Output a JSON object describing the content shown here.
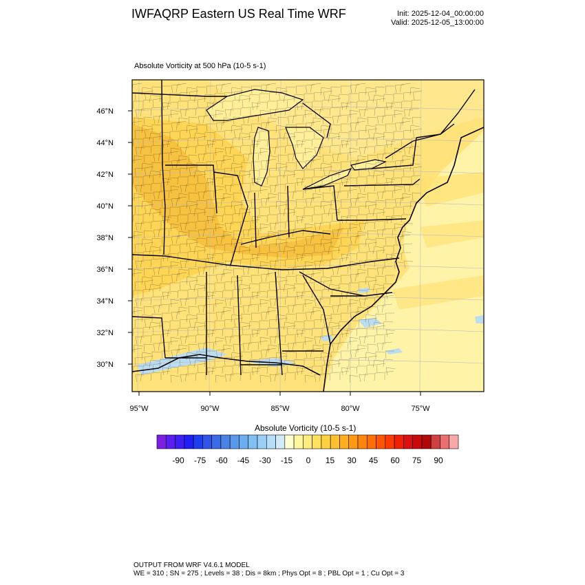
{
  "header": {
    "title": "IWFAQRP Eastern US Real Time WRF",
    "init": "Init: 2025-12-04_00:00:00",
    "valid": "Valid: 2025-12-05_13:00:00"
  },
  "plot": {
    "title": "Absolute Vorticity at 500 hPa   (10-5 s-1)",
    "lat_ticks": [
      "46°N",
      "44°N",
      "42°N",
      "40°N",
      "38°N",
      "36°N",
      "34°N",
      "32°N",
      "30°N"
    ],
    "lon_ticks": [
      "95°W",
      "90°W",
      "85°W",
      "80°W",
      "75°W"
    ]
  },
  "colorbar": {
    "title": "Absolute Vorticity  (10-5 s-1)",
    "labels": [
      "-90",
      "-75",
      "-60",
      "-45",
      "-30",
      "-15",
      "0",
      "15",
      "30",
      "45",
      "60",
      "75",
      "90"
    ],
    "colors": [
      "#7b1fe0",
      "#5a1ff0",
      "#3c1ff5",
      "#1e1ef5",
      "#1e3cf0",
      "#2d55ea",
      "#3c6be6",
      "#4a82e6",
      "#5a98ea",
      "#6aaeee",
      "#80c0f2",
      "#9ad0f5",
      "#b6def7",
      "#d2ebfa",
      "#ffffd0",
      "#fff6a0",
      "#ffec80",
      "#ffe060",
      "#ffd040",
      "#ffc030",
      "#ffae20",
      "#ff9a10",
      "#ff8508",
      "#ff6e05",
      "#ff5505",
      "#ff3a05",
      "#f02005",
      "#dd1010",
      "#c80a0a",
      "#b00808",
      "#d04040",
      "#e87070",
      "#f8a8a8"
    ]
  },
  "footer": {
    "line1": "OUTPUT FROM WRF V4.6.1 MODEL",
    "line2": "WE = 310 ; SN = 275 ; Levels = 38 ; Dis = 8km ; Phys Opt = 8 ; PBL Opt = 1 ; Cu Opt = 3"
  },
  "field_colors": {
    "ocean": "#fff2a0",
    "land_low": "#ffe680",
    "land_mid": "#ffd550",
    "land_high": "#f8c040",
    "neg_patch": "#bcdcf0",
    "grid": "#cccccc",
    "border": "#000000"
  }
}
